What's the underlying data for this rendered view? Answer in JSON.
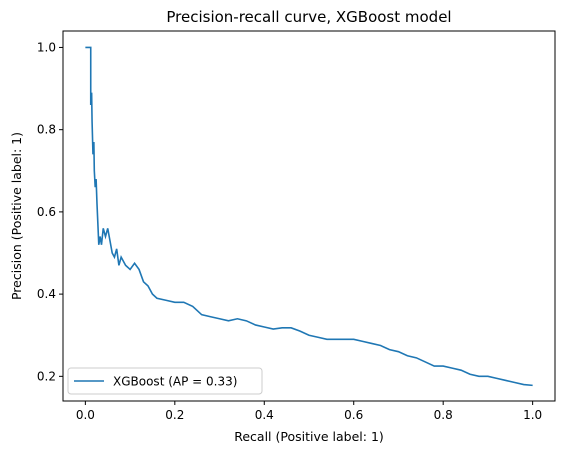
{
  "chart_data": {
    "type": "line",
    "title": "Precision-recall curve, XGBoost model",
    "xlabel": "Recall (Positive label: 1)",
    "ylabel": "Precision (Positive label: 1)",
    "xlim": [
      -0.05,
      1.05
    ],
    "ylim": [
      0.14,
      1.04
    ],
    "xticks": [
      0.0,
      0.2,
      0.4,
      0.6,
      0.8,
      1.0
    ],
    "xtick_labels": [
      "0.0",
      "0.2",
      "0.4",
      "0.6",
      "0.8",
      "1.0"
    ],
    "yticks": [
      0.2,
      0.4,
      0.6,
      0.8,
      1.0
    ],
    "ytick_labels": [
      "0.2",
      "0.4",
      "0.6",
      "0.8",
      "1.0"
    ],
    "grid": false,
    "legend_position": "lower-left",
    "series": [
      {
        "name": "XGBoost (AP = 0.33)",
        "color": "#1f77b4",
        "points": [
          [
            0.0,
            1.0
          ],
          [
            0.012,
            1.0
          ],
          [
            0.012,
            0.86
          ],
          [
            0.014,
            0.89
          ],
          [
            0.015,
            0.82
          ],
          [
            0.017,
            0.74
          ],
          [
            0.019,
            0.77
          ],
          [
            0.02,
            0.7
          ],
          [
            0.022,
            0.66
          ],
          [
            0.024,
            0.68
          ],
          [
            0.026,
            0.62
          ],
          [
            0.028,
            0.57
          ],
          [
            0.03,
            0.52
          ],
          [
            0.033,
            0.54
          ],
          [
            0.036,
            0.52
          ],
          [
            0.04,
            0.56
          ],
          [
            0.045,
            0.54
          ],
          [
            0.05,
            0.56
          ],
          [
            0.055,
            0.53
          ],
          [
            0.06,
            0.5
          ],
          [
            0.065,
            0.49
          ],
          [
            0.07,
            0.51
          ],
          [
            0.075,
            0.47
          ],
          [
            0.08,
            0.49
          ],
          [
            0.09,
            0.47
          ],
          [
            0.1,
            0.46
          ],
          [
            0.11,
            0.475
          ],
          [
            0.12,
            0.46
          ],
          [
            0.13,
            0.43
          ],
          [
            0.14,
            0.42
          ],
          [
            0.15,
            0.4
          ],
          [
            0.16,
            0.39
          ],
          [
            0.18,
            0.385
          ],
          [
            0.2,
            0.38
          ],
          [
            0.22,
            0.38
          ],
          [
            0.24,
            0.37
          ],
          [
            0.26,
            0.35
          ],
          [
            0.28,
            0.345
          ],
          [
            0.3,
            0.34
          ],
          [
            0.32,
            0.335
          ],
          [
            0.34,
            0.34
          ],
          [
            0.36,
            0.335
          ],
          [
            0.38,
            0.325
          ],
          [
            0.4,
            0.32
          ],
          [
            0.42,
            0.315
          ],
          [
            0.44,
            0.318
          ],
          [
            0.46,
            0.318
          ],
          [
            0.48,
            0.31
          ],
          [
            0.5,
            0.3
          ],
          [
            0.52,
            0.295
          ],
          [
            0.54,
            0.29
          ],
          [
            0.56,
            0.29
          ],
          [
            0.58,
            0.29
          ],
          [
            0.6,
            0.29
          ],
          [
            0.62,
            0.285
          ],
          [
            0.64,
            0.28
          ],
          [
            0.66,
            0.275
          ],
          [
            0.68,
            0.265
          ],
          [
            0.7,
            0.26
          ],
          [
            0.72,
            0.25
          ],
          [
            0.74,
            0.245
          ],
          [
            0.76,
            0.235
          ],
          [
            0.78,
            0.225
          ],
          [
            0.8,
            0.225
          ],
          [
            0.82,
            0.22
          ],
          [
            0.84,
            0.215
          ],
          [
            0.86,
            0.205
          ],
          [
            0.88,
            0.2
          ],
          [
            0.9,
            0.2
          ],
          [
            0.92,
            0.195
          ],
          [
            0.94,
            0.19
          ],
          [
            0.96,
            0.185
          ],
          [
            0.98,
            0.18
          ],
          [
            1.0,
            0.178
          ]
        ]
      }
    ]
  }
}
